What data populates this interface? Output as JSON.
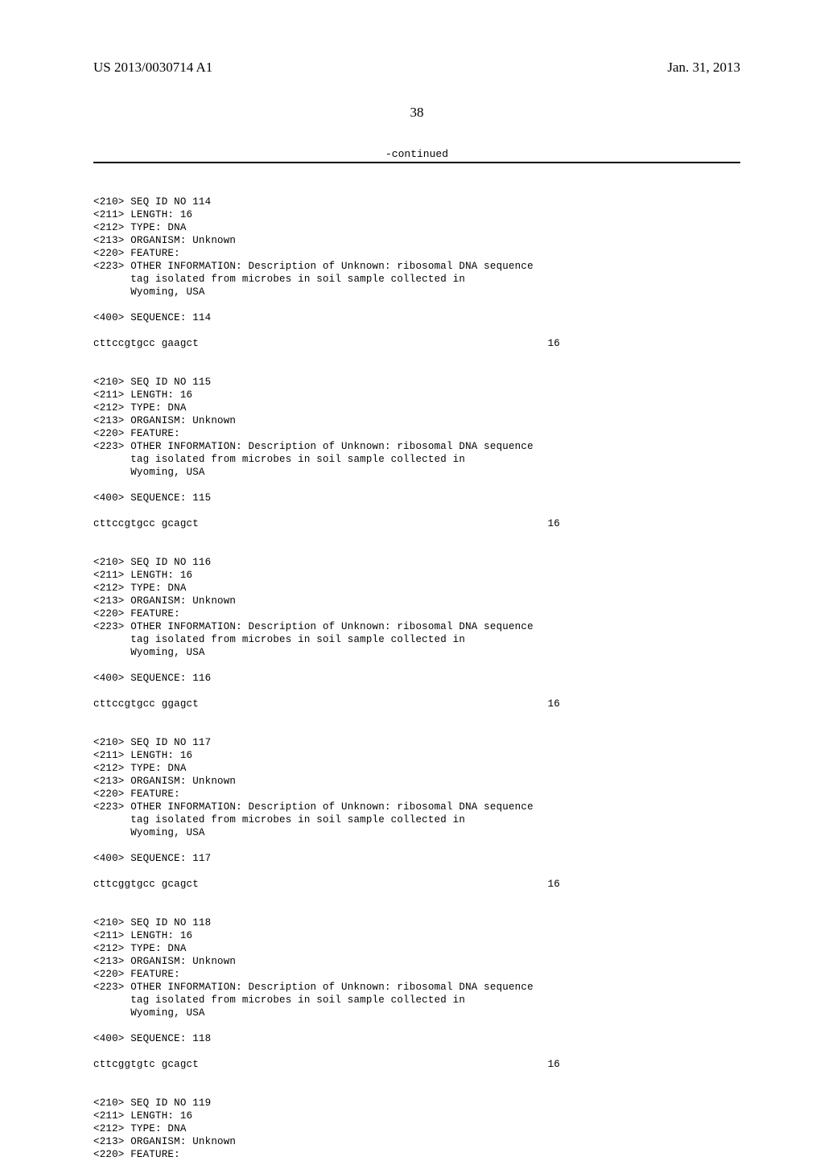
{
  "header": {
    "pub_number": "US 2013/0030714 A1",
    "pub_date": "Jan. 31, 2013"
  },
  "page_number": "38",
  "continued_label": "-continued",
  "sequences": [
    {
      "id": "114",
      "length": "16",
      "type": "DNA",
      "organism": "Unknown",
      "feature": "",
      "other_info_l1": "OTHER INFORMATION: Description of Unknown: ribosomal DNA sequence",
      "other_info_l2": "tag isolated from microbes in soil sample collected in",
      "other_info_l3": "Wyoming, USA",
      "seq_label": "114",
      "sequence": "cttccgtgcc gaagct",
      "seq_len": "16"
    },
    {
      "id": "115",
      "length": "16",
      "type": "DNA",
      "organism": "Unknown",
      "feature": "",
      "other_info_l1": "OTHER INFORMATION: Description of Unknown: ribosomal DNA sequence",
      "other_info_l2": "tag isolated from microbes in soil sample collected in",
      "other_info_l3": "Wyoming, USA",
      "seq_label": "115",
      "sequence": "cttccgtgcc gcagct",
      "seq_len": "16"
    },
    {
      "id": "116",
      "length": "16",
      "type": "DNA",
      "organism": "Unknown",
      "feature": "",
      "other_info_l1": "OTHER INFORMATION: Description of Unknown: ribosomal DNA sequence",
      "other_info_l2": "tag isolated from microbes in soil sample collected in",
      "other_info_l3": "Wyoming, USA",
      "seq_label": "116",
      "sequence": "cttccgtgcc ggagct",
      "seq_len": "16"
    },
    {
      "id": "117",
      "length": "16",
      "type": "DNA",
      "organism": "Unknown",
      "feature": "",
      "other_info_l1": "OTHER INFORMATION: Description of Unknown: ribosomal DNA sequence",
      "other_info_l2": "tag isolated from microbes in soil sample collected in",
      "other_info_l3": "Wyoming, USA",
      "seq_label": "117",
      "sequence": "cttcggtgcc gcagct",
      "seq_len": "16"
    },
    {
      "id": "118",
      "length": "16",
      "type": "DNA",
      "organism": "Unknown",
      "feature": "",
      "other_info_l1": "OTHER INFORMATION: Description of Unknown: ribosomal DNA sequence",
      "other_info_l2": "tag isolated from microbes in soil sample collected in",
      "other_info_l3": "Wyoming, USA",
      "seq_label": "118",
      "sequence": "cttcggtgtc gcagct",
      "seq_len": "16"
    }
  ],
  "partial_sequence": {
    "id": "119",
    "length": "16",
    "type": "DNA",
    "organism": "Unknown",
    "feature": ""
  },
  "labels": {
    "seq_id_prefix": "<210> SEQ ID NO ",
    "length_prefix": "<211> LENGTH: ",
    "type_prefix": "<212> TYPE: ",
    "organism_prefix": "<213> ORGANISM: ",
    "feature_prefix": "<220> FEATURE:",
    "other_prefix": "<223> ",
    "indent": "      ",
    "sequence_prefix": "<400> SEQUENCE: "
  }
}
